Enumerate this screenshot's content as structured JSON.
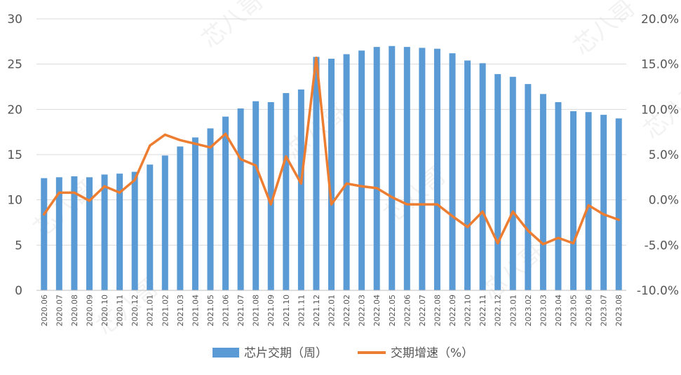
{
  "chart_data": {
    "type": "bar+line",
    "categories": [
      "2020.06",
      "2020.07",
      "2020.08",
      "2020.09",
      "2020.10",
      "2020.11",
      "2020.12",
      "2021.01",
      "2021.02",
      "2021.03",
      "2021.04",
      "2021.05",
      "2021.06",
      "2021.07",
      "2021.08",
      "2021.09",
      "2021.10",
      "2021.11",
      "2021.12",
      "2022.01",
      "2022.02",
      "2022.03",
      "2022.04",
      "2022.05",
      "2022.06",
      "2022.07",
      "2022.08",
      "2022.09",
      "2022.10",
      "2022.11",
      "2022.12",
      "2023.01",
      "2023.02",
      "2023.03",
      "2023.04",
      "2023.05",
      "2023.06",
      "2023.07",
      "2023.08"
    ],
    "series": [
      {
        "name": "芯片交期（周）",
        "type": "bar",
        "axis": "left",
        "color": "#5B9BD5",
        "values": [
          12.4,
          12.5,
          12.6,
          12.5,
          12.8,
          12.9,
          13.1,
          13.9,
          14.9,
          15.9,
          16.9,
          17.9,
          19.2,
          20.1,
          20.9,
          20.8,
          21.8,
          22.2,
          25.8,
          25.6,
          26.1,
          26.5,
          26.9,
          27.0,
          26.9,
          26.8,
          26.7,
          26.2,
          25.4,
          25.1,
          23.9,
          23.6,
          22.8,
          21.7,
          20.8,
          19.8,
          19.7,
          19.4,
          19.0
        ]
      },
      {
        "name": "交期增速（%）",
        "type": "line",
        "axis": "right",
        "color": "#ED7D31",
        "values": [
          -1.6,
          0.8,
          0.8,
          -0.1,
          1.5,
          0.8,
          2.2,
          6.0,
          7.2,
          6.6,
          6.2,
          5.8,
          7.3,
          4.5,
          3.8,
          -0.5,
          4.8,
          1.8,
          15.7,
          -0.5,
          1.8,
          1.5,
          1.3,
          0.3,
          -0.5,
          -0.5,
          -0.5,
          -1.8,
          -3.0,
          -1.3,
          -4.8,
          -1.3,
          -3.4,
          -4.9,
          -4.2,
          -4.8,
          -0.6,
          -1.6,
          -2.2
        ]
      }
    ],
    "y_left": {
      "min": 0,
      "max": 30,
      "step": 5,
      "tick_labels": [
        "0",
        "5",
        "10",
        "15",
        "20",
        "25",
        "30"
      ]
    },
    "y_right": {
      "min": -10,
      "max": 20,
      "step": 5,
      "tick_labels": [
        "-10.0%",
        "-5.0%",
        "0.0%",
        "5.0%",
        "10.0%",
        "15.0%",
        "20.0%"
      ]
    },
    "grid": "horizontal",
    "legend_position": "bottom",
    "watermark": "芯八哥"
  }
}
